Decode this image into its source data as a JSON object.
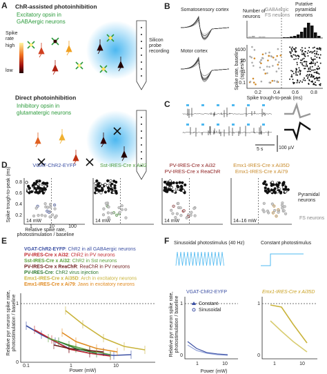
{
  "panel_a": {
    "label": "A",
    "title1": "ChR-assisted photoinhibition",
    "opsin1": [
      "Excitatory opsin in",
      "GABAergic neurons"
    ],
    "colorbar": [
      "Spike",
      "rate",
      "high",
      "low"
    ],
    "probe": [
      "Silicon",
      "probe",
      "recording"
    ],
    "title2": "Direct photoinhibition",
    "opsin2": [
      "Inhibitory opsin in",
      "glutamatergic neurons"
    ]
  },
  "panel_b": {
    "label": "B",
    "waveform_labels": [
      "Somatosensory cortex",
      "Motor cortex"
    ],
    "hist_ylabel": [
      "Number of",
      "neurons"
    ],
    "fs_label": [
      "GABAergic",
      "FS neurons"
    ],
    "pyr_label": [
      "Putative",
      "pyramidal",
      "neurons"
    ],
    "scatter_ylabel": [
      "Spike rate, baseline",
      "(spikes/s)"
    ],
    "scatter_yticks": [
      "100",
      "10",
      "1",
      "0.1"
    ],
    "xticks": [
      "0.2",
      "0.4",
      "0.6",
      "0.8"
    ],
    "xlabel": "Spike trough-to-peak (ms)"
  },
  "panel_c": {
    "label": "C",
    "time_scale": "5 s",
    "voltage_scale": "100 µV"
  },
  "panel_d": {
    "label": "D",
    "ylabel": "Spike trough-to-peak (ms)",
    "yticks": [
      "0.8",
      "0.6",
      "0.4",
      "0.2"
    ],
    "xticks": [
      "1",
      "10",
      "100"
    ],
    "xlabel": [
      "Relative spike rate,",
      "photostimulation / baseline"
    ],
    "plots": [
      {
        "title": [
          "VGAT-ChR2-EYFP"
        ],
        "color": "#3b4fa3",
        "power": "14 mW"
      },
      {
        "title": [
          "Sst-IRES-Cre x Ai32"
        ],
        "color": "#4a9a3a",
        "power": "14 mW"
      },
      {
        "title": [
          "PV-IRES-Cre x Ai32",
          "PV-IRES-Cre x ReaChR"
        ],
        "color": "#8b1a1a",
        "power": "14 mW"
      },
      {
        "title": [
          "Emx1-IRES-Cre x Ai35D",
          "Emx1-IRES-Cre x Ai79"
        ],
        "color": "#c88a2a",
        "power": "14–16 mW"
      }
    ],
    "pyr_label": [
      "Pyramidal",
      "neurons"
    ],
    "fs_label": "FS neurons"
  },
  "panel_e": {
    "label": "E",
    "legend": [
      {
        "name": "VGAT-ChR2-EYFP",
        "desc": ": ChR2 in all GABAergic neurons",
        "color": "#3b4fa3"
      },
      {
        "name": "PV-IRES-Cre x Ai32",
        "desc": ": ChR2 in PV neurons",
        "color": "#c0272d"
      },
      {
        "name": "Sst-IRES-Cre x Ai32",
        "desc": ": ChR2 in Sst neurons",
        "color": "#5aa03a"
      },
      {
        "name": "PV-IRES-Cre x ReaChR",
        "desc": ": ReaChR in PV neurons",
        "color": "#6b1616"
      },
      {
        "name": "PV-IRES-Cre",
        "desc": ": ChR2 virus injection",
        "color": "#2f7a2f"
      },
      {
        "name": "Emx1-IRES-Cre x Ai35D",
        "desc": ": Arch in excitatory neurons",
        "color": "#c9b33a"
      },
      {
        "name": "Emx1-IRES-Cre x Ai79",
        "desc": ": Jaws in excitatory neurons",
        "color": "#e08a20"
      }
    ],
    "ylabel": [
      "Relative pyr neuron spike rate,",
      "photostimulation / baseline"
    ],
    "yticks": [
      "1",
      "0"
    ],
    "xticks": [
      "0.1",
      "1",
      "10"
    ],
    "xlabel": "Power (mW)"
  },
  "panel_f": {
    "label": "F",
    "stim1": "Sinusoidal photostimulus (40 Hz)",
    "stim2": "Constant photostimulus",
    "plot1": "VGAT-ChR2-EYFP",
    "plot2": "Emx1-IRES-Cre x Ai35D",
    "legend": [
      "Constant",
      "Sinusoidal"
    ],
    "ylabel": [
      "Relative pyr neuron spike rate,",
      "photostimulation / baseline"
    ],
    "yticks": [
      "1",
      "0"
    ],
    "xticks": [
      "1",
      "10"
    ],
    "xlabel": "Power (mW)"
  }
}
